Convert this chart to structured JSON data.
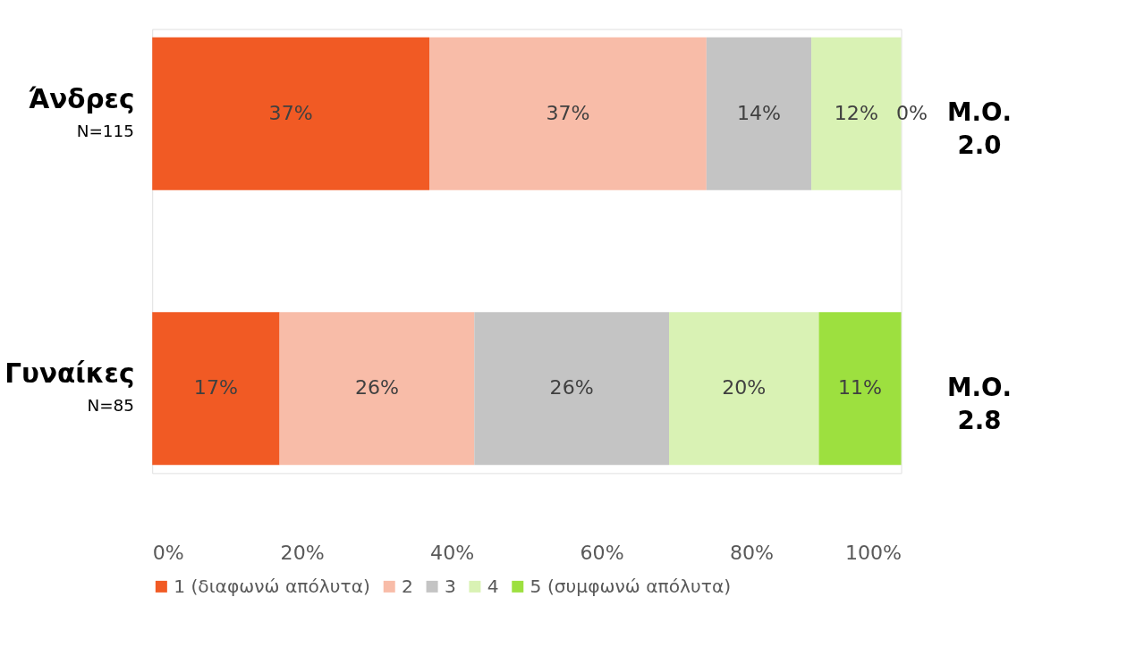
{
  "chart_data": {
    "type": "bar",
    "orientation": "horizontal",
    "stacked": true,
    "categories": [
      "Άνδρες",
      "Γυναίκες"
    ],
    "series": [
      {
        "name": "1 (διαφωνώ απόλυτα)",
        "color": "#f15a24",
        "values": [
          37,
          17
        ],
        "value_labels": [
          "37%",
          "17%"
        ]
      },
      {
        "name": "2",
        "color": "#f8bca8",
        "values": [
          37,
          26
        ],
        "value_labels": [
          "37%",
          "26%"
        ]
      },
      {
        "name": "3",
        "color": "#c4c4c4",
        "values": [
          14,
          26
        ],
        "value_labels": [
          "14%",
          "26%"
        ]
      },
      {
        "name": "4",
        "color": "#d9f2b4",
        "values": [
          12,
          20
        ],
        "value_labels": [
          "12%",
          "20%"
        ]
      },
      {
        "name": "5 (συμφωνώ απόλυτα)",
        "color": "#9de03f",
        "values": [
          0,
          11
        ],
        "value_labels": [
          "0%",
          "11%"
        ]
      }
    ],
    "xlim": [
      0,
      100
    ],
    "xticks": [
      {
        "value": 0,
        "label": "0%"
      },
      {
        "value": 20,
        "label": "20%"
      },
      {
        "value": 40,
        "label": "40%"
      },
      {
        "value": 60,
        "label": "60%"
      },
      {
        "value": 80,
        "label": "80%"
      },
      {
        "value": 100,
        "label": "100%"
      }
    ],
    "annotations": [
      "N=115",
      "Μ.Ο.\n2.0",
      "N=85",
      "Μ.Ο.\n2.8"
    ],
    "grid": false,
    "legend": "bottom"
  }
}
